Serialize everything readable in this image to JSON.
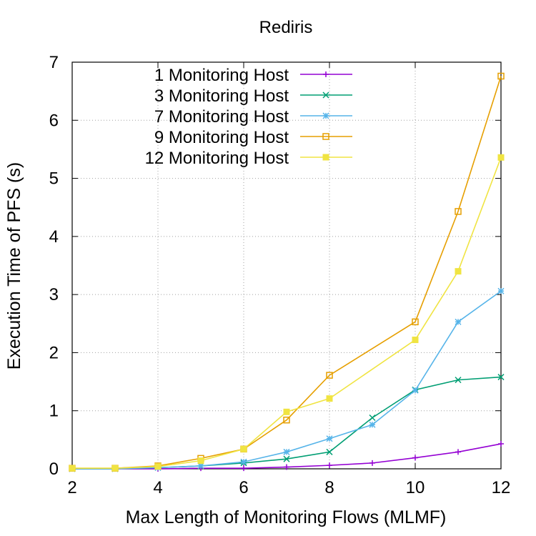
{
  "chart_data": {
    "type": "line",
    "title": "Rediris",
    "xlabel": "Max Length of Monitoring Flows (MLMF)",
    "ylabel": "Execution Time of PFS (s)",
    "xlim": [
      2,
      12
    ],
    "ylim": [
      0,
      7
    ],
    "xticks": [
      2,
      4,
      6,
      8,
      10,
      12
    ],
    "yticks": [
      0,
      1,
      2,
      3,
      4,
      5,
      6,
      7
    ],
    "grid": true,
    "legend_position": "top-left",
    "series": [
      {
        "name": "1 Monitoring Host",
        "color": "#9400d3",
        "marker": "plus",
        "x": [
          2,
          3,
          4,
          5,
          6,
          7,
          8,
          9,
          10,
          11,
          12
        ],
        "y": [
          0.0,
          0.0,
          0.0,
          0.01,
          0.01,
          0.03,
          0.06,
          0.1,
          0.19,
          0.29,
          0.43
        ]
      },
      {
        "name": "3 Monitoring Host",
        "color": "#009e73",
        "marker": "cross",
        "x": [
          2,
          3,
          4,
          5,
          6,
          7,
          8,
          9,
          10,
          11,
          12
        ],
        "y": [
          0.0,
          0.0,
          0.02,
          0.05,
          0.1,
          0.17,
          0.29,
          0.88,
          1.36,
          1.53,
          1.58
        ]
      },
      {
        "name": "7 Monitoring Host",
        "color": "#56b4e9",
        "marker": "star",
        "x": [
          2,
          3,
          4,
          5,
          6,
          7,
          8,
          9,
          10,
          11,
          12
        ],
        "y": [
          0.0,
          0.0,
          0.02,
          0.05,
          0.12,
          0.29,
          0.52,
          0.76,
          1.35,
          2.53,
          3.06
        ]
      },
      {
        "name": "9 Monitoring Host",
        "color": "#e69f00",
        "marker": "open-square",
        "x": [
          2,
          3,
          4,
          5,
          6,
          7,
          8,
          10,
          11,
          12
        ],
        "y": [
          0.01,
          0.01,
          0.05,
          0.18,
          0.34,
          0.84,
          1.61,
          2.53,
          4.43,
          6.76
        ]
      },
      {
        "name": "12 Monitoring Host",
        "color": "#f0e442",
        "marker": "filled-square",
        "x": [
          2,
          3,
          4,
          5,
          6,
          7,
          8,
          10,
          11,
          12
        ],
        "y": [
          0.01,
          0.01,
          0.04,
          0.14,
          0.34,
          0.98,
          1.21,
          2.22,
          3.4,
          5.36
        ]
      }
    ]
  }
}
